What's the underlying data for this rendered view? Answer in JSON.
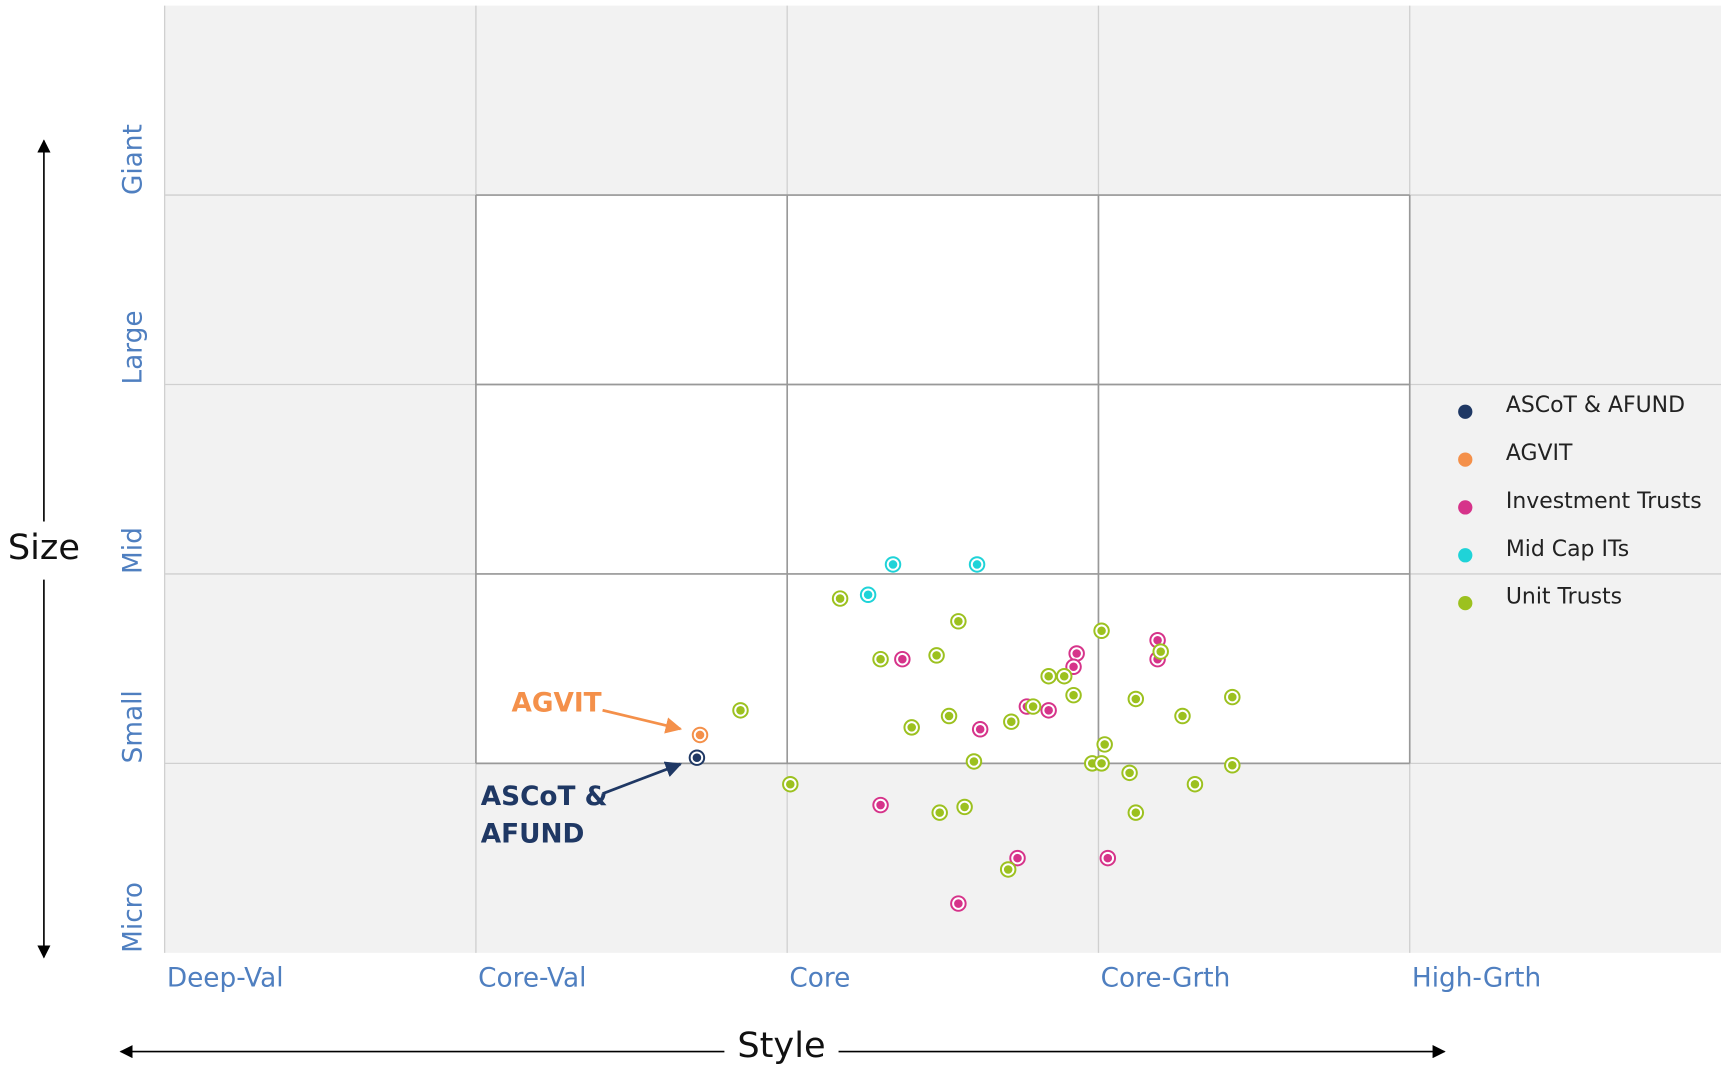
{
  "chart_data": {
    "type": "scatter",
    "x_label": "Style",
    "y_label": "Size",
    "xlim": [
      0,
      5
    ],
    "ylim": [
      0,
      5
    ],
    "xticks": [
      {
        "value": 0,
        "label": "Deep-Val"
      },
      {
        "value": 1,
        "label": "Core-Val"
      },
      {
        "value": 2,
        "label": "Core"
      },
      {
        "value": 3,
        "label": "Core-Grth"
      },
      {
        "value": 4,
        "label": "High-Grth"
      }
    ],
    "yticks": [
      {
        "value": 0,
        "label": "Micro"
      },
      {
        "value": 1,
        "label": "Small"
      },
      {
        "value": 2,
        "label": "Mid"
      },
      {
        "value": 3,
        "label": "Large"
      },
      {
        "value": 4,
        "label": "Giant"
      }
    ],
    "grid": true,
    "legend": "right",
    "series": [
      {
        "name": "ASCoT & AFUND",
        "color": "#1f3864",
        "x": [
          1.71
        ],
        "values": [
          1.03
        ]
      },
      {
        "name": "AGVIT",
        "color": "#f4904a",
        "x": [
          1.72
        ],
        "values": [
          1.15
        ]
      },
      {
        "name": "Investment Trusts",
        "color": "#d6338a",
        "x": [
          2.37,
          2.3,
          2.62,
          2.77,
          2.84,
          2.93,
          2.92,
          3.19,
          3.19,
          2.74,
          3.03,
          2.55
        ],
        "values": [
          1.55,
          0.78,
          1.18,
          1.3,
          1.28,
          1.58,
          1.51,
          1.65,
          1.55,
          0.5,
          0.5,
          0.26
        ]
      },
      {
        "name": "Mid Cap ITs",
        "color": "#1fd3d8",
        "x": [
          2.34,
          2.61,
          2.26
        ],
        "values": [
          2.05,
          2.05,
          1.89
        ]
      },
      {
        "name": "Unit Trusts",
        "color": "#9cc11f",
        "x": [
          2.17,
          1.85,
          2.55,
          2.48,
          2.3,
          2.4,
          2.52,
          2.6,
          2.72,
          2.79,
          2.84,
          2.89,
          2.92,
          3.01,
          3.12,
          3.2,
          3.27,
          3.43,
          3.02,
          2.98,
          3.01,
          3.1,
          3.43,
          3.31,
          2.01,
          2.49,
          2.57,
          3.12,
          2.71
        ],
        "values": [
          1.87,
          1.28,
          1.75,
          1.57,
          1.55,
          1.19,
          1.25,
          1.01,
          1.22,
          1.3,
          1.46,
          1.46,
          1.36,
          1.7,
          1.34,
          1.59,
          1.25,
          1.35,
          1.1,
          1.0,
          1.0,
          0.95,
          0.99,
          0.89,
          0.89,
          0.74,
          0.77,
          0.74,
          0.44
        ]
      }
    ],
    "annotations": [
      {
        "text_lines": [
          "AGVIT"
        ],
        "color": "#f4904a"
      },
      {
        "text_lines": [
          "ASCoT &",
          "AFUND"
        ],
        "color": "#1f3864"
      }
    ]
  }
}
